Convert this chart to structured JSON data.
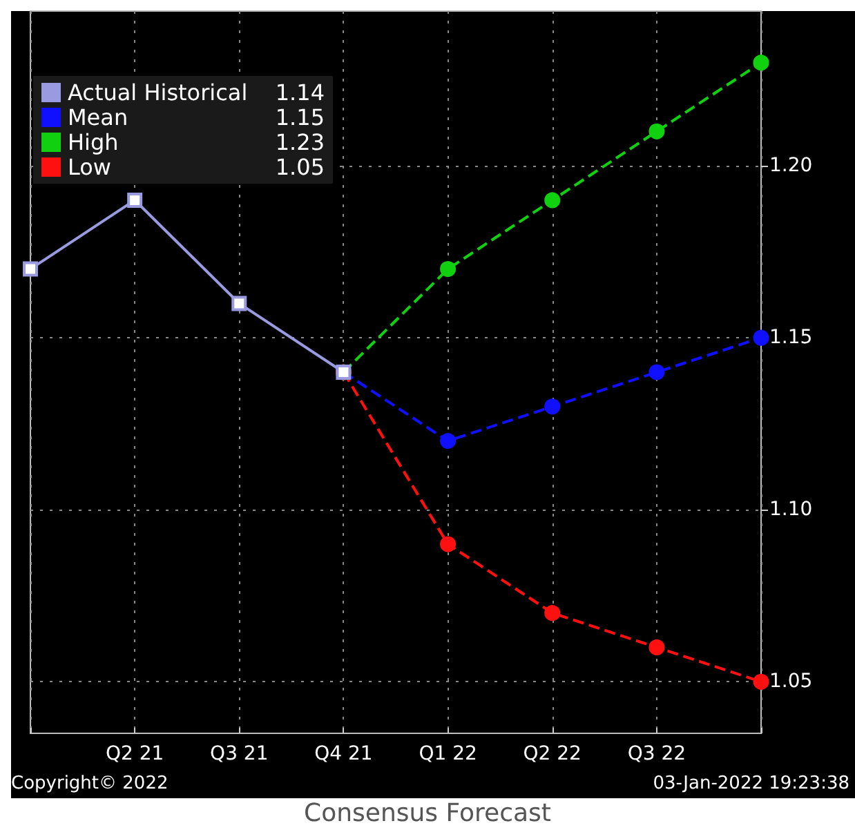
{
  "chart_data": {
    "type": "line",
    "categories": [
      null,
      "Q2 21",
      "Q3 21",
      "Q4 21",
      "Q1 22",
      "Q2 22",
      "Q3 22",
      null
    ],
    "series": [
      {
        "name": "Actual Historical",
        "color": "#9a9ae0",
        "marker": "square",
        "line_style": "solid",
        "values": [
          1.17,
          1.19,
          1.16,
          1.14,
          null,
          null,
          null,
          null
        ]
      },
      {
        "name": "Mean",
        "color": "#1010ff",
        "marker": "circle",
        "line_style": "dashed",
        "values": [
          null,
          null,
          null,
          1.14,
          1.12,
          1.13,
          1.14,
          1.15
        ]
      },
      {
        "name": "High",
        "color": "#10d010",
        "marker": "circle",
        "line_style": "dashed",
        "values": [
          null,
          null,
          null,
          1.14,
          1.17,
          1.19,
          1.21,
          1.23
        ]
      },
      {
        "name": "Low",
        "color": "#ff1010",
        "marker": "circle",
        "line_style": "dashed",
        "values": [
          null,
          null,
          null,
          1.14,
          1.09,
          1.07,
          1.06,
          1.05
        ]
      }
    ],
    "ylim": [
      1.035,
      1.245
    ],
    "yticks": [
      {
        "value": 1.05,
        "label": "1.05"
      },
      {
        "value": 1.1,
        "label": "1.10"
      },
      {
        "value": 1.15,
        "label": "1.15"
      },
      {
        "value": 1.2,
        "label": "1.20"
      }
    ],
    "grid": true,
    "legend": "top left",
    "annotations": [
      "Copyright© 2022",
      "03-Jan-2022 19:23:38",
      "Consensus Forecast",
      "1.14",
      "1.15",
      "1.23",
      "1.05"
    ]
  }
}
